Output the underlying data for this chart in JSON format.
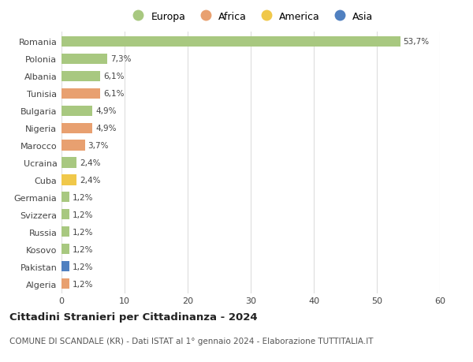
{
  "countries": [
    "Romania",
    "Polonia",
    "Albania",
    "Tunisia",
    "Bulgaria",
    "Nigeria",
    "Marocco",
    "Ucraina",
    "Cuba",
    "Germania",
    "Svizzera",
    "Russia",
    "Kosovo",
    "Pakistan",
    "Algeria"
  ],
  "values": [
    53.7,
    7.3,
    6.1,
    6.1,
    4.9,
    4.9,
    3.7,
    2.4,
    2.4,
    1.2,
    1.2,
    1.2,
    1.2,
    1.2,
    1.2
  ],
  "labels": [
    "53,7%",
    "7,3%",
    "6,1%",
    "6,1%",
    "4,9%",
    "4,9%",
    "3,7%",
    "2,4%",
    "2,4%",
    "1,2%",
    "1,2%",
    "1,2%",
    "1,2%",
    "1,2%",
    "1,2%"
  ],
  "continents": [
    "Europa",
    "Europa",
    "Europa",
    "Africa",
    "Europa",
    "Africa",
    "Africa",
    "Europa",
    "America",
    "Europa",
    "Europa",
    "Europa",
    "Europa",
    "Asia",
    "Africa"
  ],
  "continent_colors": {
    "Europa": "#a8c880",
    "Africa": "#e8a070",
    "America": "#f0c84a",
    "Asia": "#5080c0"
  },
  "legend_order": [
    "Europa",
    "Africa",
    "America",
    "Asia"
  ],
  "title": "Cittadini Stranieri per Cittadinanza - 2024",
  "subtitle": "COMUNE DI SCANDALE (KR) - Dati ISTAT al 1° gennaio 2024 - Elaborazione TUTTITALIA.IT",
  "xlim": [
    0,
    60
  ],
  "xticks": [
    0,
    10,
    20,
    30,
    40,
    50,
    60
  ],
  "background_color": "#ffffff",
  "grid_color": "#dddddd",
  "bar_height": 0.6,
  "figsize": [
    6.0,
    4.6
  ],
  "dpi": 100
}
